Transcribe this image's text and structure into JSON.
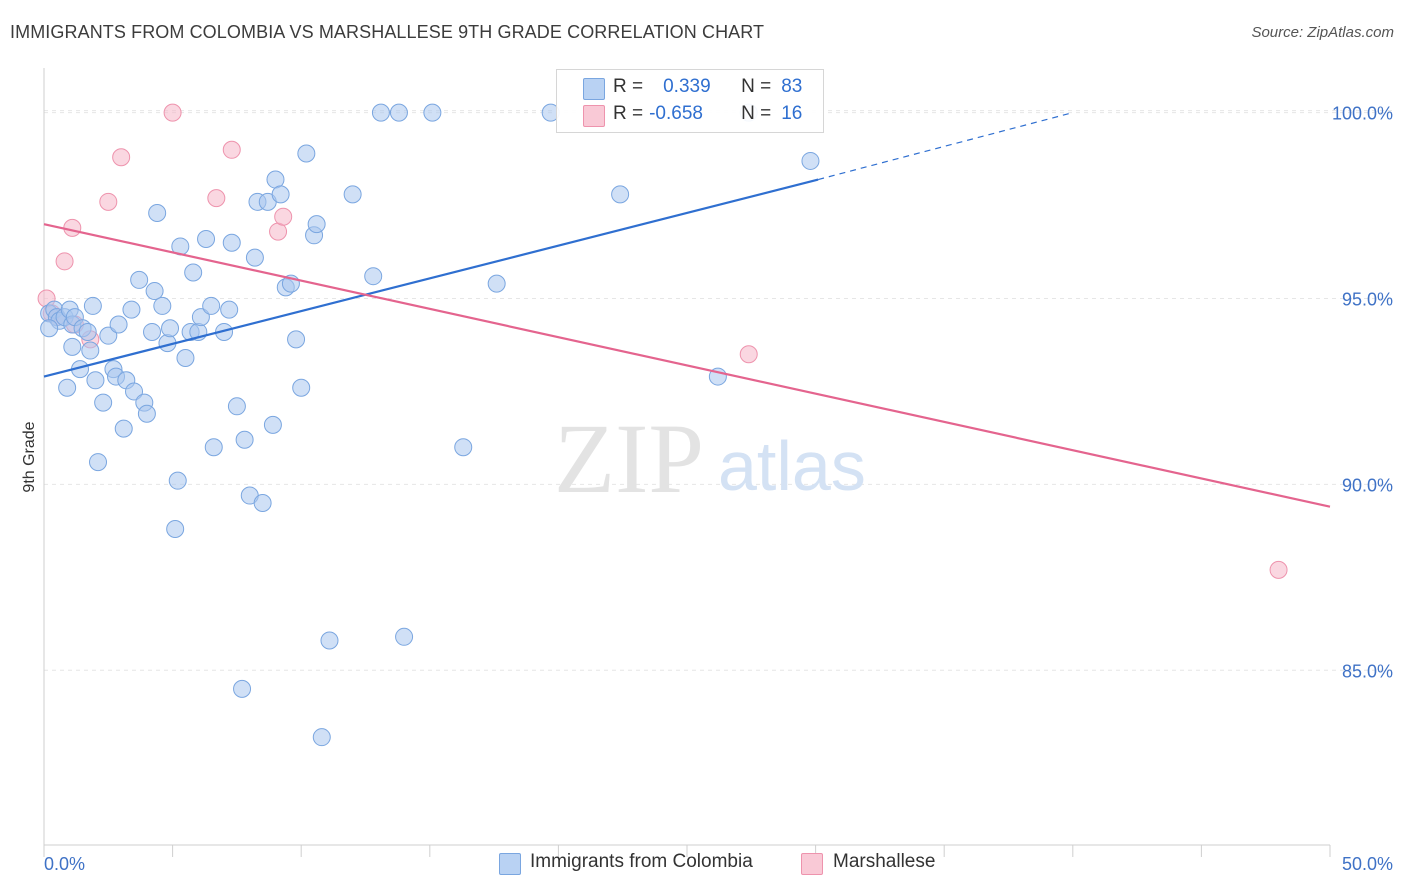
{
  "header": {
    "title": "IMMIGRANTS FROM COLOMBIA VS MARSHALLESE 9TH GRADE CORRELATION CHART",
    "source": "Source: ZipAtlas.com"
  },
  "watermark": {
    "zip": "ZIP",
    "atlas": "atlas"
  },
  "legend_box": {
    "rows": [
      {
        "r_label": "R =",
        "r_value": "0.339",
        "n_label": "N =",
        "n_value": "83"
      },
      {
        "r_label": "R =",
        "r_value": "-0.658",
        "n_label": "N =",
        "n_value": "16"
      }
    ]
  },
  "colors": {
    "blue_fill": "#a9c7ef",
    "blue_stroke": "#7aa6e0",
    "blue_line": "#2f6fd0",
    "pink_fill": "#f6b6c8",
    "pink_stroke": "#ee93ad",
    "pink_line": "#e4648e",
    "tick_label": "#3f72c6"
  },
  "chart_data": {
    "type": "scatter",
    "title": "IMMIGRANTS FROM COLOMBIA VS MARSHALLESE 9TH GRADE CORRELATION CHART",
    "xlabel": "",
    "ylabel": "9th Grade",
    "xlim": [
      0,
      50
    ],
    "ylim": [
      80.3,
      101.2
    ],
    "x_tick_labels": [
      "0.0%",
      "50.0%"
    ],
    "y_ticks": [
      85,
      90,
      95,
      100
    ],
    "y_tick_labels": [
      "85.0%",
      "90.0%",
      "95.0%",
      "100.0%"
    ],
    "grid": true,
    "legend_position": "bottom",
    "series": [
      {
        "name": "Immigrants from Colombia",
        "R": 0.339,
        "N": 83,
        "trend": {
          "x1": 0,
          "y1": 92.9,
          "x2": 30.1,
          "y2": 98.2,
          "dash_to_x": 40.0,
          "dash_to_y": 100.0
        },
        "points": [
          [
            0.2,
            94.6
          ],
          [
            0.4,
            94.7
          ],
          [
            0.5,
            94.5
          ],
          [
            0.6,
            94.4
          ],
          [
            0.8,
            94.5
          ],
          [
            1.0,
            94.7
          ],
          [
            1.1,
            94.3
          ],
          [
            1.2,
            94.5
          ],
          [
            0.9,
            92.6
          ],
          [
            1.1,
            93.7
          ],
          [
            1.4,
            93.1
          ],
          [
            1.5,
            94.2
          ],
          [
            1.7,
            94.1
          ],
          [
            1.8,
            93.6
          ],
          [
            1.9,
            94.8
          ],
          [
            2.0,
            92.8
          ],
          [
            2.1,
            90.6
          ],
          [
            2.3,
            92.2
          ],
          [
            2.5,
            94.0
          ],
          [
            2.7,
            93.1
          ],
          [
            2.8,
            92.9
          ],
          [
            2.9,
            94.3
          ],
          [
            3.1,
            91.5
          ],
          [
            3.2,
            92.8
          ],
          [
            3.4,
            94.7
          ],
          [
            3.5,
            92.5
          ],
          [
            3.7,
            95.5
          ],
          [
            3.9,
            92.2
          ],
          [
            4.0,
            91.9
          ],
          [
            4.2,
            94.1
          ],
          [
            4.3,
            95.2
          ],
          [
            4.4,
            97.3
          ],
          [
            4.6,
            94.8
          ],
          [
            4.8,
            93.8
          ],
          [
            4.9,
            94.2
          ],
          [
            5.1,
            88.8
          ],
          [
            5.2,
            90.1
          ],
          [
            5.3,
            96.4
          ],
          [
            5.5,
            93.4
          ],
          [
            5.7,
            94.1
          ],
          [
            5.8,
            95.7
          ],
          [
            6.0,
            94.1
          ],
          [
            6.1,
            94.5
          ],
          [
            6.3,
            96.6
          ],
          [
            6.5,
            94.8
          ],
          [
            6.6,
            91.0
          ],
          [
            7.0,
            94.1
          ],
          [
            7.2,
            94.7
          ],
          [
            7.3,
            96.5
          ],
          [
            7.5,
            92.1
          ],
          [
            7.7,
            84.5
          ],
          [
            7.8,
            91.2
          ],
          [
            8.0,
            89.7
          ],
          [
            8.2,
            96.1
          ],
          [
            8.3,
            97.6
          ],
          [
            8.5,
            89.5
          ],
          [
            8.7,
            97.6
          ],
          [
            8.9,
            91.6
          ],
          [
            9.0,
            98.2
          ],
          [
            9.2,
            97.8
          ],
          [
            9.4,
            95.3
          ],
          [
            9.6,
            95.4
          ],
          [
            9.8,
            93.9
          ],
          [
            10.0,
            92.6
          ],
          [
            10.2,
            98.9
          ],
          [
            10.5,
            96.7
          ],
          [
            10.6,
            97.0
          ],
          [
            10.8,
            83.2
          ],
          [
            11.1,
            85.8
          ],
          [
            12.0,
            97.8
          ],
          [
            12.8,
            95.6
          ],
          [
            13.1,
            100.0
          ],
          [
            13.8,
            100.0
          ],
          [
            14.0,
            85.9
          ],
          [
            15.1,
            100.0
          ],
          [
            16.3,
            91.0
          ],
          [
            17.6,
            95.4
          ],
          [
            19.7,
            100.0
          ],
          [
            22.4,
            97.8
          ],
          [
            26.2,
            92.9
          ],
          [
            27.4,
            100.0
          ],
          [
            29.8,
            98.7
          ],
          [
            0.2,
            94.2
          ]
        ]
      },
      {
        "name": "Marshallese",
        "R": -0.658,
        "N": 16,
        "trend": {
          "x1": 0,
          "y1": 97.0,
          "x2": 50,
          "y2": 89.4
        },
        "points": [
          [
            0.1,
            95.0
          ],
          [
            0.3,
            94.6
          ],
          [
            0.5,
            94.5
          ],
          [
            0.8,
            96.0
          ],
          [
            1.1,
            96.9
          ],
          [
            1.2,
            94.3
          ],
          [
            1.8,
            93.9
          ],
          [
            2.5,
            97.6
          ],
          [
            3.0,
            98.8
          ],
          [
            5.0,
            100.0
          ],
          [
            6.7,
            97.7
          ],
          [
            7.3,
            99.0
          ],
          [
            9.1,
            96.8
          ],
          [
            9.3,
            97.2
          ],
          [
            27.4,
            93.5
          ],
          [
            48.0,
            87.7
          ]
        ]
      }
    ]
  }
}
